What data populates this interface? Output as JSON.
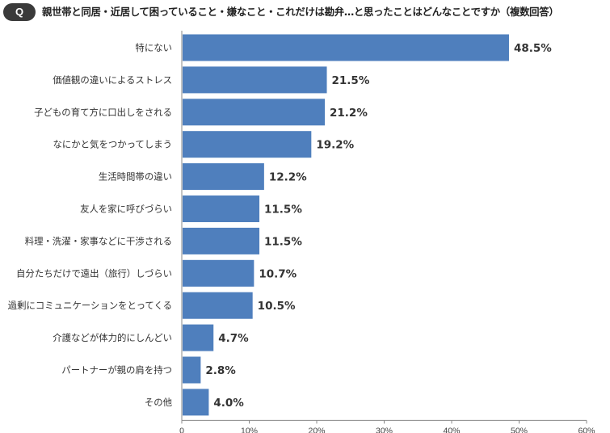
{
  "header": {
    "badge": "Q",
    "title": "親世帯と同居・近居して困っていること・嫌なこと・これだけは勘弁…と思ったことはどんなことですか（複数回答）"
  },
  "chart_data": {
    "type": "bar",
    "orientation": "horizontal",
    "categories": [
      "特にない",
      "価値観の違いによるストレス",
      "子どもの育て方に口出しをされる",
      "なにかと気をつかってしまう",
      "生活時間帯の違い",
      "友人を家に呼びづらい",
      "料理・洗濯・家事などに干渉される",
      "自分たちだけで遠出（旅行）しづらい",
      "過剰にコミュニケーションをとってくる",
      "介護などが体力的にしんどい",
      "パートナーが親の肩を持つ",
      "その他"
    ],
    "values": [
      48.5,
      21.5,
      21.2,
      19.2,
      12.2,
      11.5,
      11.5,
      10.7,
      10.5,
      4.7,
      2.8,
      4.0
    ],
    "value_labels": [
      "48.5%",
      "21.5%",
      "21.2%",
      "19.2%",
      "12.2%",
      "11.5%",
      "11.5%",
      "10.7%",
      "10.5%",
      "4.7%",
      "2.8%",
      "4.0%"
    ],
    "xlim": [
      0,
      60
    ],
    "x_ticks": [
      0,
      10,
      20,
      30,
      40,
      50,
      60
    ],
    "x_tick_labels": [
      "0",
      "10%",
      "20%",
      "30%",
      "40%",
      "50%",
      "60%"
    ],
    "bar_color": "#4f7fbd",
    "grid": false
  }
}
